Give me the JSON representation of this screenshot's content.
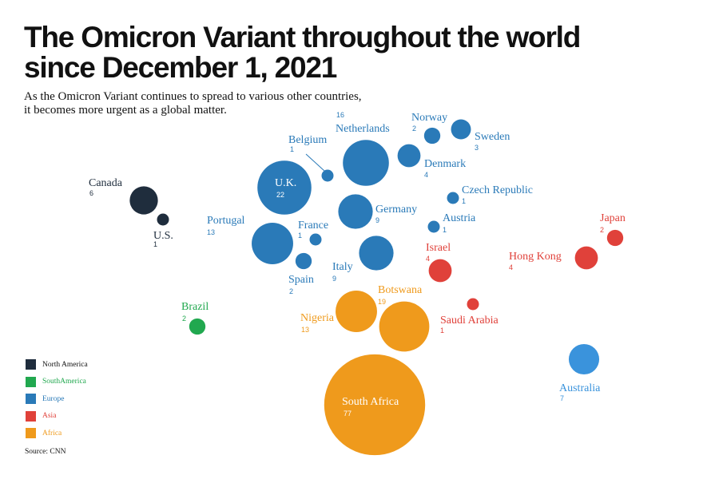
{
  "title_line1": "The Omicron Variant throughout the world",
  "title_line2": "since December 1, 2021",
  "subtitle_line1": "As the Omicron Variant continues to spread to various other countries,",
  "subtitle_line2": "it becomes more urgent as a global matter.",
  "source": "Source: CNN",
  "colors": {
    "North America": "#1f2d3d",
    "SouthAmerica": "#21a84f",
    "Europe": "#2a7ab8",
    "Asia": "#e0413a",
    "Africa": "#ef9a1c"
  },
  "legend": [
    {
      "label": "North America",
      "text_color": "#111111"
    },
    {
      "label": "SouthAmerica",
      "text_color": "#21a84f"
    },
    {
      "label": "Europe",
      "text_color": "#2a7ab8"
    },
    {
      "label": "Asia",
      "text_color": "#e0413a"
    },
    {
      "label": "Africa",
      "text_color": "#ef9a1c"
    }
  ],
  "chart_data": {
    "type": "bubble",
    "value_meaning": "cases",
    "points": [
      {
        "name": "Canada",
        "value": 6,
        "group": "North America"
      },
      {
        "name": "U.S.",
        "value": 1,
        "group": "North America"
      },
      {
        "name": "Brazil",
        "value": 2,
        "group": "SouthAmerica"
      },
      {
        "name": "Netherlands",
        "value": 16,
        "group": "Europe"
      },
      {
        "name": "Belgium",
        "value": 1,
        "group": "Europe"
      },
      {
        "name": "Norway",
        "value": 2,
        "group": "Europe"
      },
      {
        "name": "Sweden",
        "value": 3,
        "group": "Europe"
      },
      {
        "name": "Denmark",
        "value": 4,
        "group": "Europe"
      },
      {
        "name": "U.K.",
        "value": 22,
        "group": "Europe"
      },
      {
        "name": "Czech Republic",
        "value": 1,
        "group": "Europe"
      },
      {
        "name": "Germany",
        "value": 9,
        "group": "Europe"
      },
      {
        "name": "Portugal",
        "value": 13,
        "group": "Europe"
      },
      {
        "name": "France",
        "value": 1,
        "group": "Europe"
      },
      {
        "name": "Austria",
        "value": 1,
        "group": "Europe"
      },
      {
        "name": "Italy",
        "value": 9,
        "group": "Europe"
      },
      {
        "name": "Spain",
        "value": 2,
        "group": "Europe"
      },
      {
        "name": "Israel",
        "value": 4,
        "group": "Asia"
      },
      {
        "name": "Japan",
        "value": 2,
        "group": "Asia"
      },
      {
        "name": "Hong Kong",
        "value": 4,
        "group": "Asia"
      },
      {
        "name": "Saudi Arabia",
        "value": 1,
        "group": "Asia"
      },
      {
        "name": "Botswana",
        "value": 19,
        "group": "Africa"
      },
      {
        "name": "Nigeria",
        "value": 13,
        "group": "Africa"
      },
      {
        "name": "South Africa",
        "value": 77,
        "group": "Africa"
      },
      {
        "name": "Australia",
        "value": 7,
        "group": "Australia"
      }
    ]
  }
}
